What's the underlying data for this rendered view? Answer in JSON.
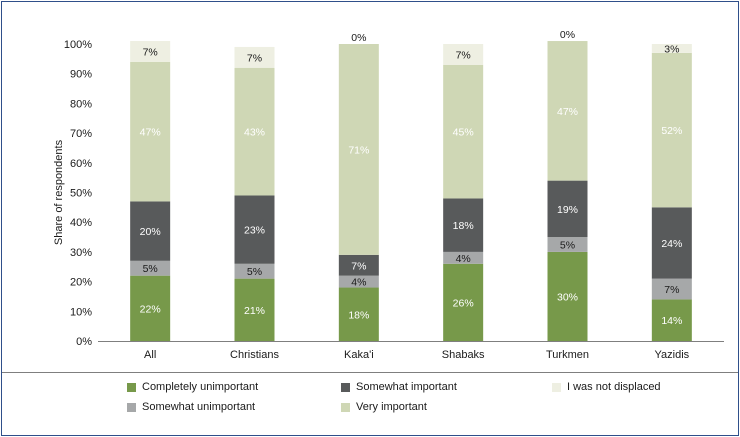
{
  "chart_data": {
    "type": "bar",
    "stacked": true,
    "ylabel": "Share of respondents",
    "ylim": [
      0,
      100
    ],
    "yticks": [
      "0%",
      "10%",
      "20%",
      "30%",
      "40%",
      "50%",
      "60%",
      "70%",
      "80%",
      "90%",
      "100%"
    ],
    "categories": [
      "All",
      "Christians",
      "Kaka'i",
      "Shabaks",
      "Turkmen",
      "Yazidis"
    ],
    "series": [
      {
        "name": "Completely unimportant",
        "color": "#77994a",
        "label_color": "#ffffff",
        "values": [
          22,
          21,
          18,
          26,
          30,
          14
        ],
        "labels": [
          "22%",
          "21%",
          "18%",
          "26%",
          "30%",
          "14%"
        ]
      },
      {
        "name": "Somewhat unimportant",
        "color": "#a6a8a9",
        "label_color": "#1a1a1a",
        "values": [
          5,
          5,
          4,
          4,
          5,
          7
        ],
        "labels": [
          "5%",
          "5%",
          "4%",
          "4%",
          "5%",
          "7%"
        ]
      },
      {
        "name": "Somewhat important",
        "color": "#585a5b",
        "label_color": "#ffffff",
        "values": [
          20,
          23,
          7,
          18,
          19,
          24
        ],
        "labels": [
          "20%",
          "23%",
          "7%",
          "18%",
          "19%",
          "24%"
        ]
      },
      {
        "name": "Very important",
        "color": "#cfd7b5",
        "label_color": "#ffffff",
        "values": [
          47,
          43,
          71,
          45,
          47,
          52
        ],
        "labels": [
          "47%",
          "43%",
          "71%",
          "45%",
          "47%",
          "52%"
        ]
      },
      {
        "name": "I was not displaced",
        "color": "#eeefe2",
        "label_color": "#1a1a1a",
        "values": [
          7,
          7,
          0,
          7,
          0,
          3
        ],
        "labels": [
          "7%",
          "7%",
          "0%",
          "7%",
          "0%",
          "3%"
        ]
      }
    ],
    "legend": {
      "position": "bottom",
      "columns": 3
    },
    "grid": false
  }
}
